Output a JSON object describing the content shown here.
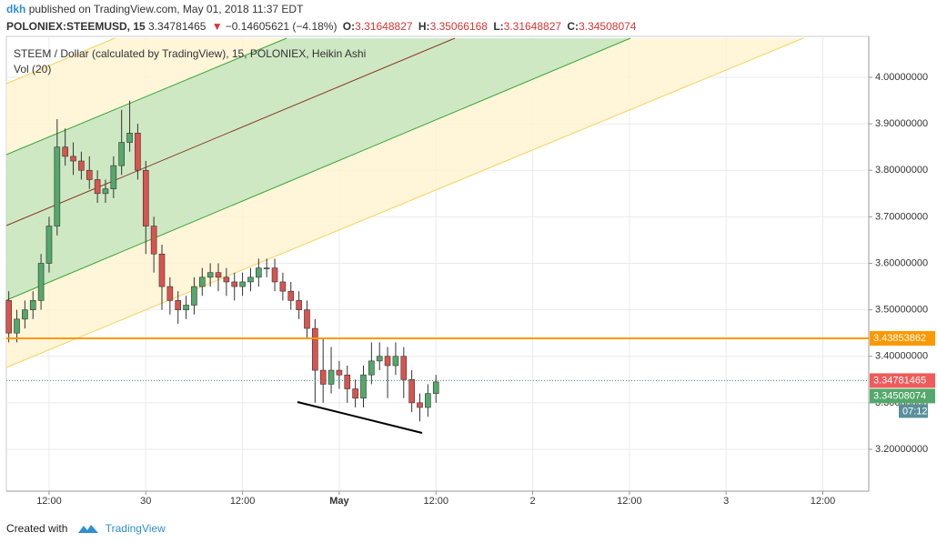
{
  "header": {
    "author": "dkh",
    "published": "published on TradingView.com, May 01, 2018 11:37 EDT",
    "symbol": "POLONIEX:STEEMUSD, 15",
    "last": "3.34781465",
    "arrow": "▼",
    "change": "−0.14605621 (−4.18%)",
    "o_key": "O:",
    "o": "3.31648827",
    "h_key": "H:",
    "h": "3.35066168",
    "l_key": "L:",
    "l": "3.31648827",
    "c_key": "C:",
    "c": "3.34508074"
  },
  "chart_data": {
    "type": "candlestick",
    "title": "STEEM / Dollar (calculated by TradingView), 15, POLONIEX, Heikin Ashi",
    "indicator": "Vol (20)",
    "x": [
      -17,
      -16,
      -15,
      -14,
      -13,
      -12,
      -11,
      -10,
      -9,
      -8,
      -7,
      -6,
      -5,
      -4,
      -3,
      -2,
      -1,
      0,
      1,
      2,
      3,
      4,
      5,
      6,
      7,
      8,
      9,
      10,
      11,
      12,
      13,
      14,
      15,
      16,
      17,
      18,
      19,
      20,
      21,
      22,
      23,
      24,
      25,
      26,
      27,
      28,
      29,
      30,
      31,
      32,
      33,
      34,
      35,
      36
    ],
    "open": [
      3.52,
      3.45,
      3.48,
      3.5,
      3.52,
      3.6,
      3.68,
      3.85,
      3.83,
      3.82,
      3.8,
      3.78,
      3.75,
      3.76,
      3.81,
      3.86,
      3.88,
      3.8,
      3.68,
      3.62,
      3.55,
      3.52,
      3.5,
      3.51,
      3.55,
      3.57,
      3.58,
      3.57,
      3.56,
      3.55,
      3.56,
      3.57,
      3.59,
      3.59,
      3.56,
      3.54,
      3.52,
      3.5,
      3.46,
      3.37,
      3.34,
      3.37,
      3.36,
      3.33,
      3.31,
      3.36,
      3.39,
      3.4,
      3.38,
      3.4,
      3.35,
      3.3,
      3.29,
      3.32
    ],
    "high": [
      3.54,
      3.5,
      3.52,
      3.54,
      3.62,
      3.7,
      3.91,
      3.89,
      3.86,
      3.84,
      3.83,
      3.8,
      3.78,
      3.83,
      3.93,
      3.95,
      3.9,
      3.82,
      3.7,
      3.64,
      3.57,
      3.54,
      3.53,
      3.57,
      3.59,
      3.6,
      3.6,
      3.59,
      3.58,
      3.58,
      3.59,
      3.61,
      3.61,
      3.61,
      3.58,
      3.56,
      3.54,
      3.52,
      3.48,
      3.44,
      3.42,
      3.39,
      3.38,
      3.35,
      3.38,
      3.43,
      3.43,
      3.42,
      3.43,
      3.42,
      3.37,
      3.32,
      3.34,
      3.36
    ],
    "low": [
      3.43,
      3.43,
      3.46,
      3.48,
      3.5,
      3.58,
      3.66,
      3.81,
      3.79,
      3.78,
      3.76,
      3.73,
      3.73,
      3.74,
      3.79,
      3.84,
      3.78,
      3.62,
      3.58,
      3.5,
      3.49,
      3.47,
      3.48,
      3.49,
      3.53,
      3.55,
      3.54,
      3.53,
      3.52,
      3.53,
      3.54,
      3.55,
      3.57,
      3.54,
      3.52,
      3.5,
      3.48,
      3.44,
      3.3,
      3.3,
      3.32,
      3.33,
      3.3,
      3.29,
      3.29,
      3.34,
      3.37,
      3.31,
      3.36,
      3.31,
      3.28,
      3.26,
      3.27,
      3.3
    ],
    "close": [
      3.45,
      3.48,
      3.5,
      3.52,
      3.6,
      3.68,
      3.85,
      3.83,
      3.82,
      3.8,
      3.78,
      3.75,
      3.76,
      3.81,
      3.86,
      3.88,
      3.8,
      3.68,
      3.62,
      3.55,
      3.52,
      3.5,
      3.51,
      3.55,
      3.57,
      3.58,
      3.57,
      3.56,
      3.55,
      3.56,
      3.57,
      3.59,
      3.59,
      3.56,
      3.54,
      3.52,
      3.5,
      3.46,
      3.37,
      3.34,
      3.37,
      3.36,
      3.33,
      3.31,
      3.36,
      3.39,
      3.4,
      3.38,
      3.4,
      3.35,
      3.3,
      3.29,
      3.32,
      3.345
    ],
    "up_color": "#53a86a",
    "down_color": "#d9534f",
    "xlim": [
      -17.3,
      89.7
    ],
    "xticks": [
      {
        "value": -12,
        "label": "12:00"
      },
      {
        "value": 0,
        "label": "30"
      },
      {
        "value": 12,
        "label": "12:00"
      },
      {
        "value": 24,
        "label": "May"
      },
      {
        "value": 36,
        "label": "12:00"
      },
      {
        "value": 48,
        "label": "2"
      },
      {
        "value": 60,
        "label": "12:00"
      },
      {
        "value": 72,
        "label": "3"
      },
      {
        "value": 84,
        "label": "12:00"
      }
    ],
    "ylim": [
      3.11,
      4.088
    ],
    "yticks": [
      {
        "value": 3.2,
        "label": "3.20000000"
      },
      {
        "value": 3.3,
        "label": "3.30000000"
      },
      {
        "value": 3.4,
        "label": "3.40000000"
      },
      {
        "value": 3.5,
        "label": "3.50000000"
      },
      {
        "value": 3.6,
        "label": "3.60000000"
      },
      {
        "value": 3.7,
        "label": "3.70000000"
      },
      {
        "value": 3.8,
        "label": "3.80000000"
      },
      {
        "value": 3.9,
        "label": "3.90000000"
      },
      {
        "value": 4.0,
        "label": "4.00000000"
      }
    ],
    "grid": true,
    "price_line": {
      "value": 3.43853862,
      "color": "#ff9800"
    },
    "last_price": {
      "value": 3.34781465,
      "color": "#f05a5a"
    },
    "close_price": {
      "value": 3.34508074,
      "color": "#53a86a",
      "countdown": "07:12"
    }
  },
  "footer": {
    "created": "Created with",
    "brand": "TradingView"
  }
}
